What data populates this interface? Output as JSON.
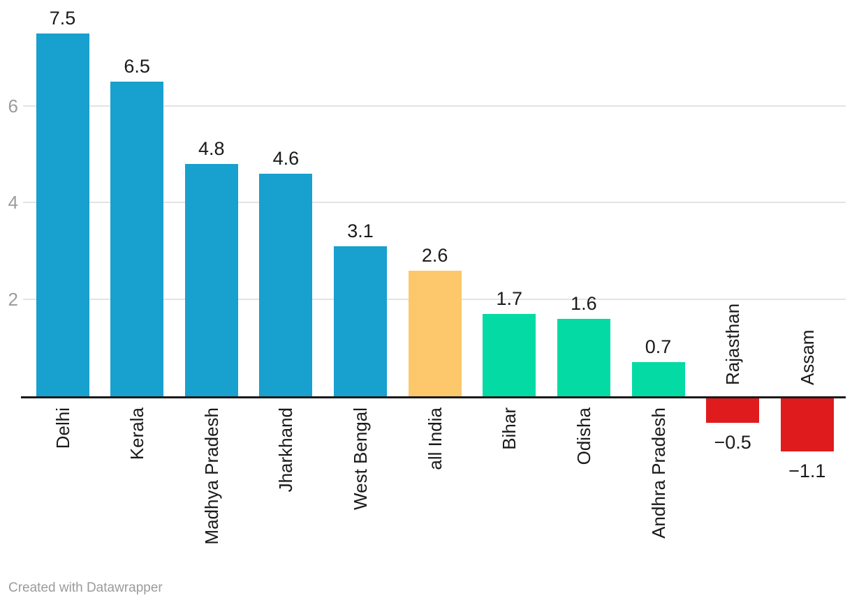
{
  "chart_data": {
    "type": "bar",
    "categories": [
      "Delhi",
      "Kerala",
      "Madhya Pradesh",
      "Jharkhand",
      "West Bengal",
      "all India",
      "Bihar",
      "Odisha",
      "Andhra Pradesh",
      "Rajasthan",
      "Assam"
    ],
    "values": [
      7.5,
      6.5,
      4.8,
      4.6,
      3.1,
      2.6,
      1.7,
      1.6,
      0.7,
      -0.5,
      -1.1
    ],
    "value_labels": [
      "7.5",
      "6.5",
      "4.8",
      "4.6",
      "3.1",
      "2.6",
      "1.7",
      "1.6",
      "0.7",
      "−0.5",
      "−1.1"
    ],
    "bar_colors": [
      "#18a0ce",
      "#18a0ce",
      "#18a0ce",
      "#18a0ce",
      "#18a0ce",
      "#fcc86b",
      "#04dba4",
      "#04dba4",
      "#04dba4",
      "#e01b1d",
      "#e01b1d"
    ],
    "y_ticks": [
      2,
      4,
      6
    ],
    "ylim": [
      -1.6,
      7.8
    ],
    "grid": true,
    "legend": "none",
    "title": "",
    "xlabel": "",
    "ylabel": "",
    "category_label_rotation_deg": -90,
    "colors_meta": {
      "blue": "#18a0ce",
      "orange": "#fcc86b",
      "green": "#04dba4",
      "red": "#e01b1d",
      "gridline": "#e3e3e3",
      "axis": "#1a1a1a",
      "tick_text": "#9c9c9c",
      "label_text": "#1a1a1a"
    }
  },
  "footer": {
    "credit": "Created with Datawrapper"
  }
}
